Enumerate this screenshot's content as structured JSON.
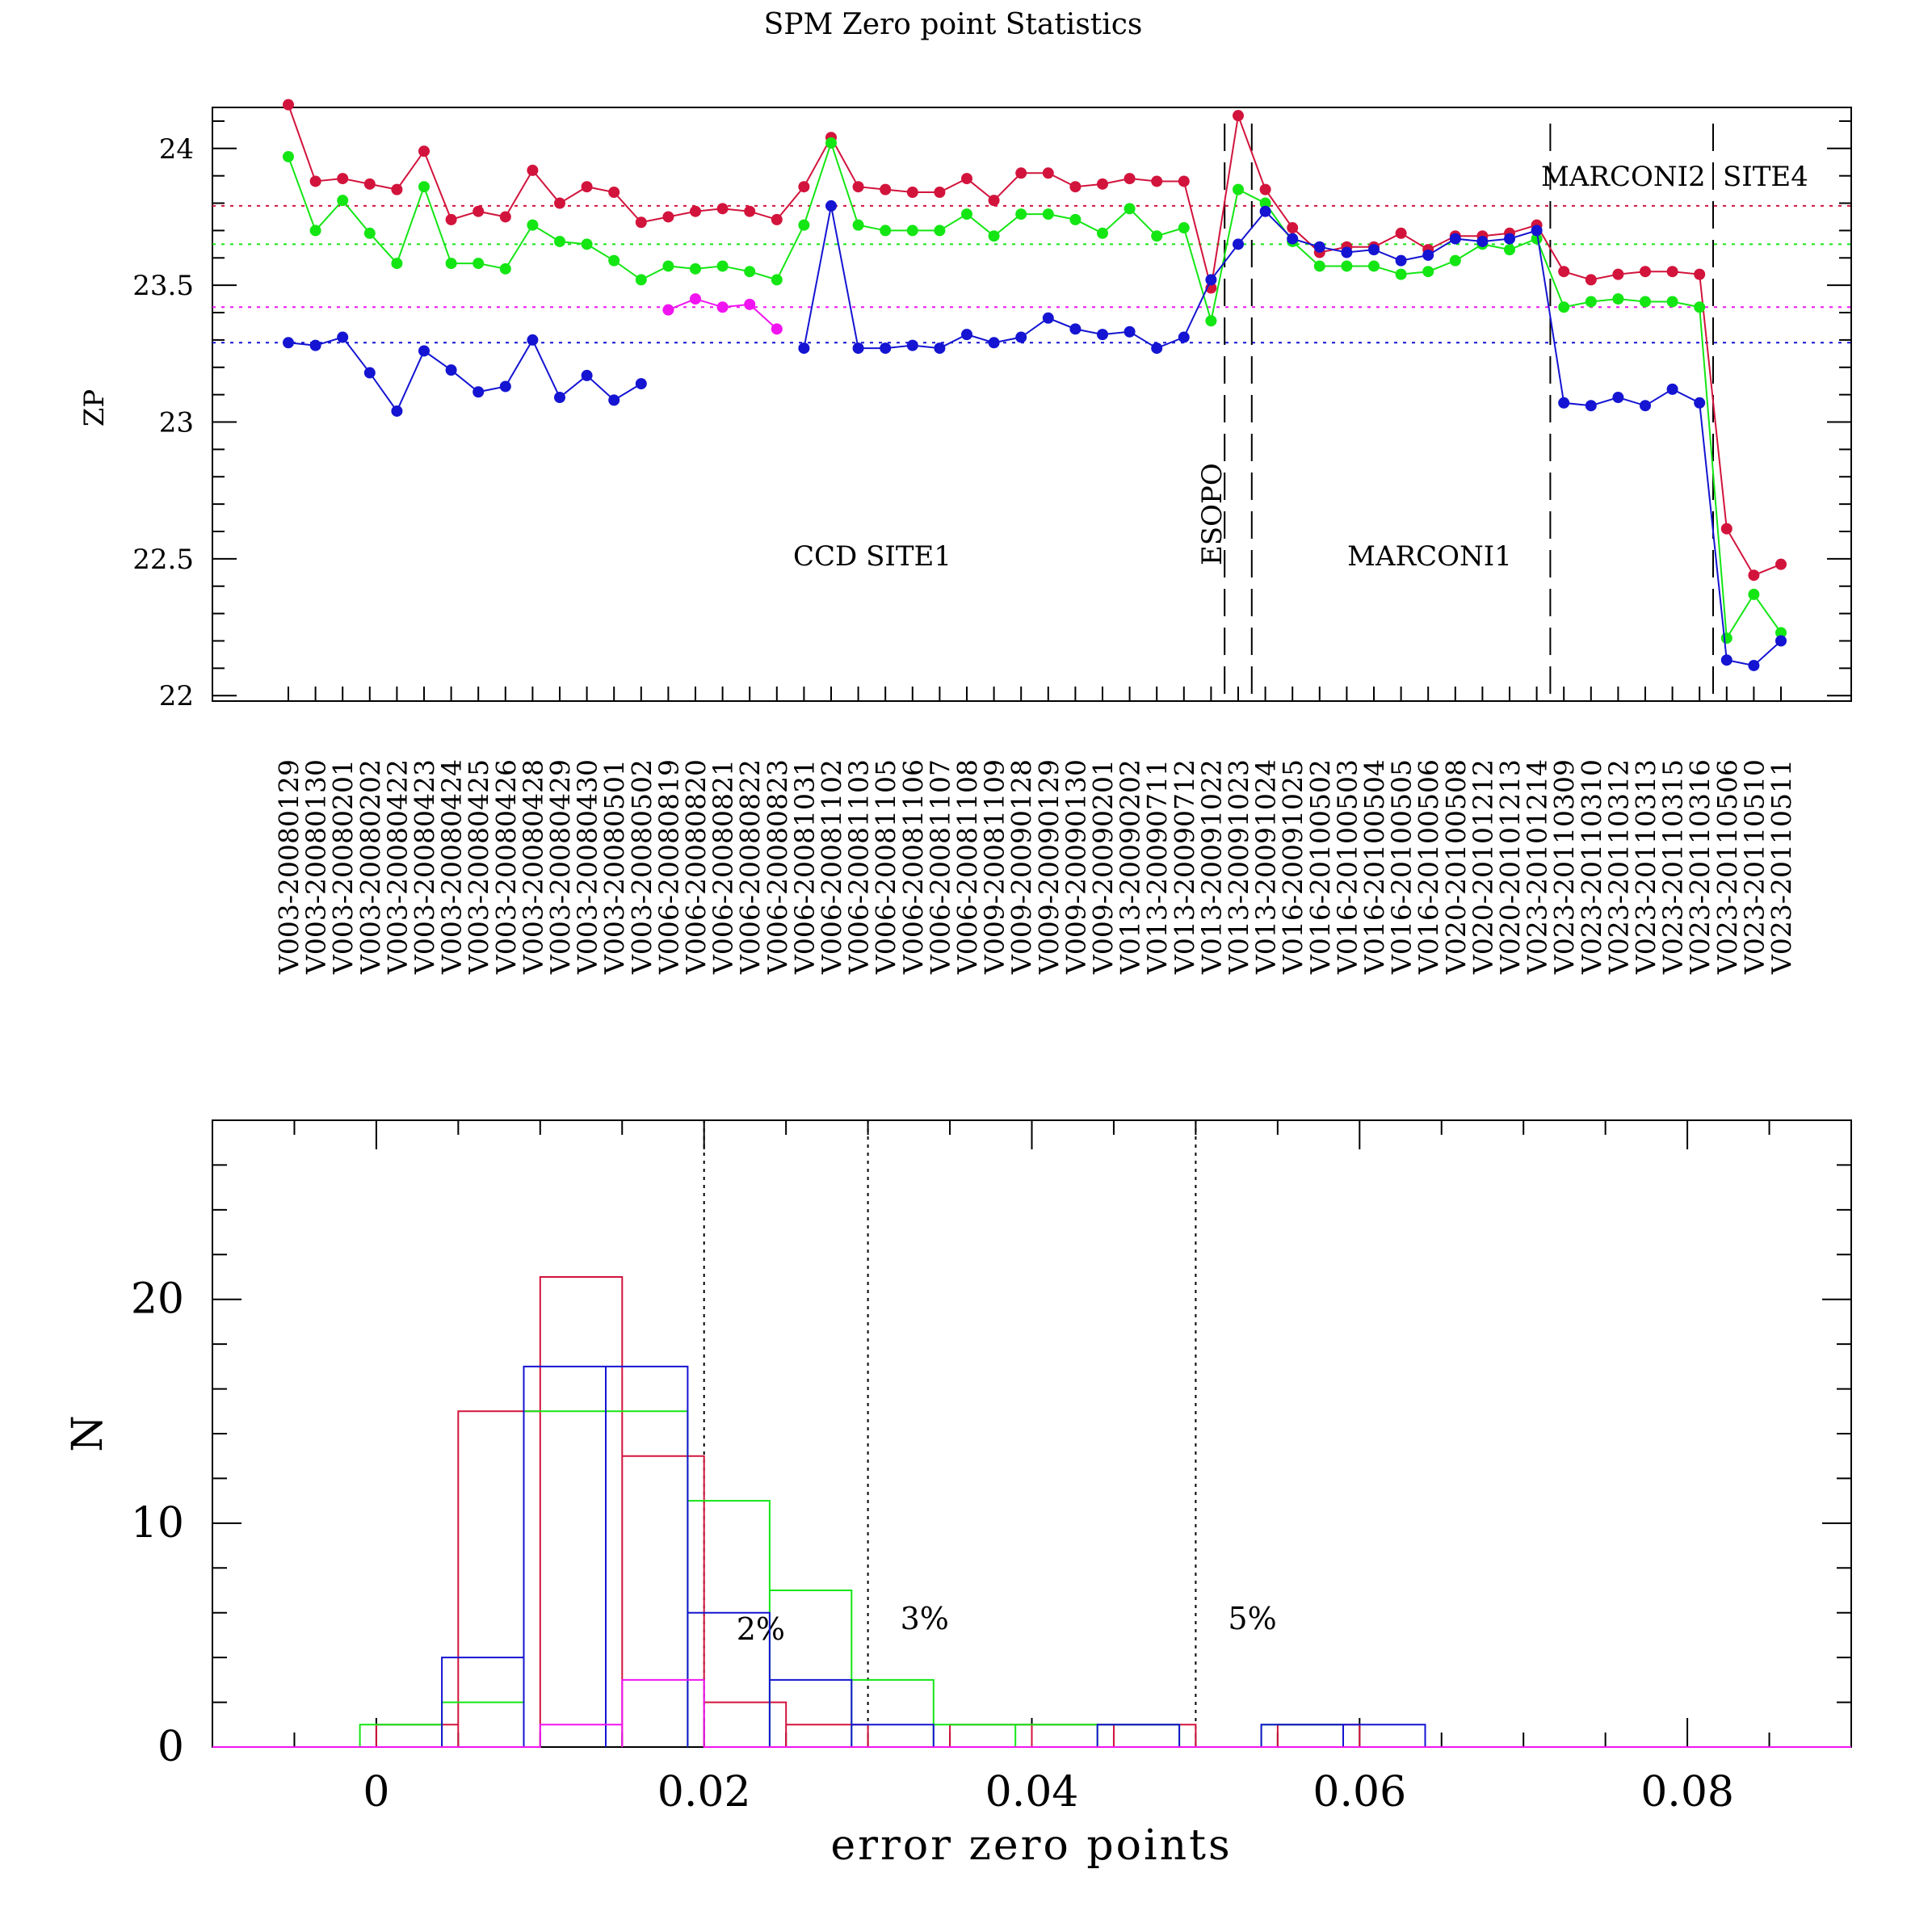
{
  "title": "SPM  Zero point Statistics",
  "colors": {
    "red": "#d2143c",
    "green": "#14e614",
    "blue": "#1414d2",
    "magenta": "#f014f0",
    "axis": "#000000"
  },
  "chart_data": [
    {
      "type": "line",
      "ylabel": "ZP",
      "ylim": [
        21.98,
        24.15
      ],
      "yticks": [
        "22",
        "22.5",
        "23",
        "23.5",
        "24"
      ],
      "categories": [
        "V003-20080129",
        "V003-20080130",
        "V003-20080201",
        "V003-20080202",
        "V003-20080422",
        "V003-20080423",
        "V003-20080424",
        "V003-20080425",
        "V003-20080426",
        "V003-20080428",
        "V003-20080429",
        "V003-20080430",
        "V003-20080501",
        "V003-20080502",
        "V006-20080819",
        "V006-20080820",
        "V006-20080821",
        "V006-20080822",
        "V006-20080823",
        "V006-20081031",
        "V006-20081102",
        "V006-20081103",
        "V006-20081105",
        "V006-20081106",
        "V006-20081107",
        "V006-20081108",
        "V009-20081109",
        "V009-20090128",
        "V009-20090129",
        "V009-20090130",
        "V009-20090201",
        "V013-20090202",
        "V013-20090711",
        "V013-20090712",
        "V013-20091022",
        "V013-20091023",
        "V013-20091024",
        "V016-20091025",
        "V016-20100502",
        "V016-20100503",
        "V016-20100504",
        "V016-20100505",
        "V016-20100506",
        "V020-20100508",
        "V020-20101212",
        "V020-20101213",
        "V023-20101214",
        "V023-20110309",
        "V023-20110310",
        "V023-20110312",
        "V023-20110313",
        "V023-20110315",
        "V023-20110316",
        "V023-20110506",
        "V023-20110510",
        "V023-20110511"
      ],
      "series": [
        {
          "color": "red",
          "mean": 23.79,
          "values": [
            24.16,
            23.88,
            23.89,
            23.87,
            23.85,
            23.99,
            23.74,
            23.77,
            23.75,
            23.92,
            23.8,
            23.86,
            23.84,
            23.73,
            23.75,
            23.77,
            23.78,
            23.77,
            23.74,
            23.86,
            24.04,
            23.86,
            23.85,
            23.84,
            23.84,
            23.89,
            23.81,
            23.91,
            23.91,
            23.86,
            23.87,
            23.89,
            23.88,
            23.88,
            23.49,
            24.12,
            23.85,
            23.71,
            23.62,
            23.64,
            23.64,
            23.69,
            23.63,
            23.68,
            23.68,
            23.69,
            23.72,
            23.55,
            23.52,
            23.54,
            23.55,
            23.55,
            23.54,
            22.61,
            22.44,
            22.48
          ]
        },
        {
          "color": "green",
          "mean": 23.65,
          "values": [
            23.97,
            23.7,
            23.81,
            23.69,
            23.58,
            23.86,
            23.58,
            23.58,
            23.56,
            23.72,
            23.66,
            23.65,
            23.59,
            23.52,
            23.57,
            23.56,
            23.57,
            23.55,
            23.52,
            23.72,
            24.02,
            23.72,
            23.7,
            23.7,
            23.7,
            23.76,
            23.68,
            23.76,
            23.76,
            23.74,
            23.69,
            23.78,
            23.68,
            23.71,
            23.37,
            23.85,
            23.8,
            23.66,
            23.57,
            23.57,
            23.57,
            23.54,
            23.55,
            23.59,
            23.65,
            23.63,
            23.67,
            23.42,
            23.44,
            23.45,
            23.44,
            23.44,
            23.42,
            22.21,
            22.37,
            22.23
          ]
        },
        {
          "color": "blue",
          "mean": 23.29,
          "values": [
            23.29,
            23.28,
            23.31,
            23.18,
            23.04,
            23.26,
            23.19,
            23.11,
            23.13,
            23.3,
            23.09,
            23.17,
            23.08,
            23.14,
            null,
            null,
            null,
            null,
            null,
            23.27,
            23.79,
            23.27,
            23.27,
            23.28,
            23.27,
            23.32,
            23.29,
            23.31,
            23.38,
            23.34,
            23.32,
            23.33,
            23.27,
            23.31,
            23.52,
            23.65,
            23.77,
            23.67,
            23.64,
            23.62,
            23.63,
            23.59,
            23.61,
            23.67,
            23.66,
            23.67,
            23.7,
            23.07,
            23.06,
            23.09,
            23.06,
            23.12,
            23.07,
            22.13,
            22.11,
            22.2
          ]
        },
        {
          "color": "magenta",
          "mean": 23.42,
          "values": [
            null,
            null,
            null,
            null,
            null,
            null,
            null,
            null,
            null,
            null,
            null,
            null,
            null,
            null,
            23.41,
            23.45,
            23.42,
            23.43,
            23.34,
            null,
            null,
            null,
            null,
            null,
            null,
            null,
            null,
            null,
            null,
            null,
            null,
            null,
            null,
            null,
            null,
            null,
            null,
            null,
            null,
            null,
            null,
            null,
            null,
            null,
            null,
            null,
            null,
            null,
            null,
            null,
            null,
            null,
            null,
            null,
            null,
            null
          ]
        }
      ],
      "dividers_after_category": [
        "V013-20091022",
        "V013-20091023",
        "V023-20101214",
        "V023-20110316"
      ],
      "annotations": [
        "CCD SITE1",
        "ESOPO",
        "MARCONI1",
        "MARCONI2",
        "SITE4"
      ]
    },
    {
      "type": "histogram",
      "xlabel": "error zero points",
      "ylabel": "N",
      "xlim": [
        -0.01,
        0.09
      ],
      "ylim": [
        0,
        28
      ],
      "xticks": [
        "0",
        "0.02",
        "0.04",
        "0.06",
        "0.08"
      ],
      "yticks": [
        "0",
        "10",
        "20"
      ],
      "reference_lines": [
        {
          "x": 0.02,
          "label": "2%"
        },
        {
          "x": 0.03,
          "label": "3%"
        },
        {
          "x": 0.05,
          "label": "5%"
        }
      ],
      "series": [
        {
          "color": "red",
          "bins": [
            [
              0,
              0.005,
              1
            ],
            [
              0.005,
              0.01,
              15
            ],
            [
              0.01,
              0.015,
              21
            ],
            [
              0.015,
              0.02,
              13
            ],
            [
              0.02,
              0.025,
              2
            ],
            [
              0.025,
              0.03,
              1
            ],
            [
              0.03,
              0.035,
              0
            ],
            [
              0.035,
              0.04,
              1
            ],
            [
              0.04,
              0.045,
              1
            ],
            [
              0.045,
              0.05,
              1
            ],
            [
              0.05,
              0.055,
              0
            ],
            [
              0.055,
              0.06,
              1
            ],
            [
              0.06,
              0.065,
              0
            ]
          ]
        },
        {
          "color": "green",
          "bins": [
            [
              -0.001,
              0.004,
              1
            ],
            [
              0.004,
              0.009,
              2
            ],
            [
              0.009,
              0.014,
              15
            ],
            [
              0.014,
              0.019,
              15
            ],
            [
              0.019,
              0.024,
              11
            ],
            [
              0.024,
              0.029,
              7
            ],
            [
              0.029,
              0.034,
              3
            ],
            [
              0.034,
              0.039,
              1
            ],
            [
              0.039,
              0.044,
              1
            ],
            [
              0.044,
              0.049,
              1
            ],
            [
              0.049,
              0.054,
              0
            ],
            [
              0.054,
              0.059,
              1
            ],
            [
              0.059,
              0.064,
              0
            ]
          ]
        },
        {
          "color": "blue",
          "bins": [
            [
              0,
              0.004,
              0
            ],
            [
              0.004,
              0.009,
              4
            ],
            [
              0.009,
              0.014,
              17
            ],
            [
              0.014,
              0.019,
              17
            ],
            [
              0.019,
              0.024,
              6
            ],
            [
              0.024,
              0.029,
              3
            ],
            [
              0.029,
              0.034,
              1
            ],
            [
              0.034,
              0.039,
              0
            ],
            [
              0.039,
              0.044,
              0
            ],
            [
              0.044,
              0.049,
              1
            ],
            [
              0.049,
              0.054,
              0
            ],
            [
              0.054,
              0.059,
              1
            ],
            [
              0.059,
              0.064,
              1
            ]
          ]
        },
        {
          "color": "magenta",
          "bins": [
            [
              0,
              0.01,
              0
            ],
            [
              0.01,
              0.015,
              1
            ],
            [
              0.015,
              0.02,
              3
            ],
            [
              0.02,
              0.025,
              0
            ]
          ]
        }
      ]
    }
  ]
}
